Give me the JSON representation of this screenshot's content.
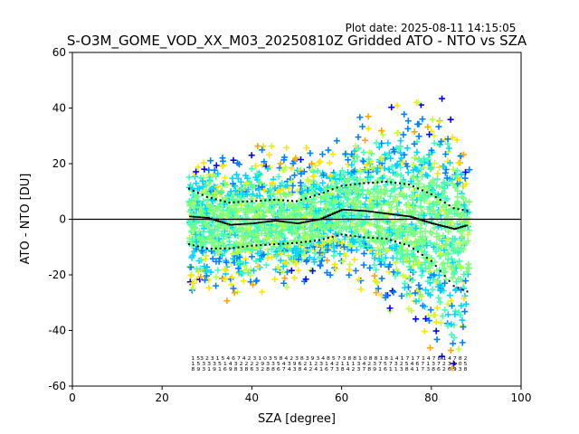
{
  "chart_data": {
    "type": "scatter",
    "plot_date": "Plot date: 2025-08-11 14:15:05",
    "title": "S-O3M_GOME_VOD_XX_M03_20250810Z Gridded ATO - NTO vs SZA",
    "xlabel": "SZA [degree]",
    "ylabel": "ATO - NTO [DU]",
    "xlim": [
      0,
      100
    ],
    "ylim": [
      -60,
      60
    ],
    "xticks": [
      0,
      20,
      40,
      60,
      80,
      100
    ],
    "yticks": [
      -60,
      -40,
      -20,
      0,
      20,
      40,
      60
    ],
    "reference_line_y": 0,
    "grid": false,
    "legend": "none",
    "marker": "+",
    "color_scale": [
      "#0000ff",
      "#0080ff",
      "#00d4ff",
      "#40ffb8",
      "#7fff7f",
      "#c4ff3a",
      "#ffe600",
      "#ffa500"
    ],
    "median_line": {
      "x": [
        26,
        30,
        35,
        40,
        45,
        50,
        55,
        60,
        65,
        70,
        75,
        80,
        85,
        88
      ],
      "y": [
        1,
        0.5,
        -2,
        -1.5,
        -0.5,
        -1.5,
        0,
        3.5,
        3,
        2,
        1,
        -1.5,
        -3.5,
        -2
      ]
    },
    "upper_band": {
      "x": [
        26,
        30,
        35,
        40,
        45,
        50,
        55,
        60,
        65,
        70,
        75,
        80,
        85,
        88
      ],
      "y": [
        11,
        8,
        6,
        6.5,
        7,
        6.5,
        9,
        12,
        13,
        13.5,
        12.5,
        9,
        4,
        3
      ]
    },
    "lower_band": {
      "x": [
        26,
        30,
        35,
        40,
        45,
        50,
        55,
        60,
        65,
        70,
        75,
        80,
        85,
        88
      ],
      "y": [
        -9,
        -10.5,
        -10.5,
        -9.5,
        -9,
        -8.5,
        -7.5,
        -5.5,
        -6.5,
        -7,
        -9.5,
        -15,
        -24,
        -26
      ]
    },
    "scatter_envelope": {
      "x": [
        26,
        30,
        35,
        40,
        45,
        50,
        55,
        60,
        62,
        65,
        70,
        75,
        80,
        84,
        86,
        88
      ],
      "upper": [
        21,
        23,
        24,
        25,
        25,
        24,
        25,
        28,
        33,
        36,
        38,
        40,
        40,
        42,
        30,
        20
      ],
      "lower": [
        -25,
        -28,
        -28,
        -26,
        -25,
        -22,
        -20,
        -18,
        -20,
        -25,
        -30,
        -38,
        -45,
        -55,
        -58,
        -45
      ],
      "median": [
        1,
        0.5,
        -2,
        -1.5,
        -0.5,
        -1.5,
        0,
        3.5,
        3.5,
        3,
        2,
        1,
        -1.5,
        -3.5,
        -3,
        -2
      ]
    },
    "count_rows": [
      "1 53 2 3 1 5 4 6 7 4 2 3 1 0 3 5 8 4 2 3 8 3 9 3 4 8 5 7 3 8 8 1 0 8 8 1 8 1 4 1 7 1 7 1 4 7 8 1 4 7 8 2",
      "1 5 3 3 3 5 1 4 3 2 2 2 2 9 3 3 5 4 3 9 6 2 1 2 3 1 4 2 1 1 1 3 4 2 3 7 5 7 3 2 5 4 6 7 1 3 7 2 3 1 0 5",
      "8 9 3 1 9 1 6 9 8 3 8 6 3 2 8 8 6 7 4 3 8 4 2 4 1 6 7 3 8 4 2 3 7 8 9 1 6 1 1 3 8 4 1 7 3 8 6 2 6 9 3 8"
    ]
  }
}
